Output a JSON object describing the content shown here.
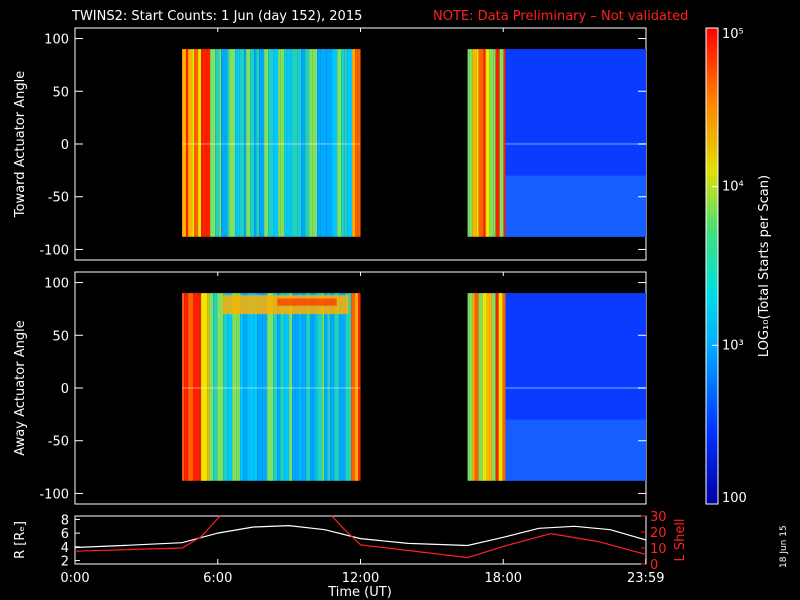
{
  "title": "TWINS2: Start Counts:  1 Jun (day 152), 2015",
  "note": "NOTE: Data Preliminary – Not validated",
  "date_stamp": "18 Jun 15",
  "colors": {
    "background": "#000000",
    "axis": "#ffffff",
    "note": "#ff2020",
    "r_line": "#ffffff",
    "l_shell_line": "#ff2020"
  },
  "chart_data": [
    {
      "type": "heatmap",
      "ylabel": "Toward Actuator Angle",
      "ylim": [
        -110,
        110
      ],
      "y_ticks": [
        "100",
        "50",
        "0",
        "-50",
        "-100"
      ],
      "xlim_hours": [
        0,
        24
      ],
      "data_blocks_hours": [
        [
          4.5,
          12.0
        ],
        [
          16.5,
          24.0
        ]
      ],
      "angle_range": [
        -88,
        90
      ],
      "colormap": "rainbow, log scale"
    },
    {
      "type": "heatmap",
      "ylabel": "Away Actuator Angle",
      "ylim": [
        -110,
        110
      ],
      "y_ticks": [
        "100",
        "50",
        "0",
        "-50",
        "-100"
      ],
      "xlim_hours": [
        0,
        24
      ],
      "data_blocks_hours": [
        [
          4.5,
          12.0
        ],
        [
          16.5,
          24.0
        ]
      ],
      "angle_range": [
        -88,
        90
      ],
      "colormap": "rainbow, log scale"
    },
    {
      "type": "line",
      "x_ticks": [
        "0:00",
        "6:00",
        "12:00",
        "18:00",
        "23:59"
      ],
      "xlabel": "Time (UT)",
      "ylabel_left": "R [Rₑ]",
      "ylim_left": [
        1.5,
        8.5
      ],
      "y_ticks_left": [
        "8",
        "6",
        "4",
        "2"
      ],
      "ylabel_right": "L Shell",
      "ylim_right": [
        0,
        30
      ],
      "y_ticks_right": [
        "30",
        "20",
        "10",
        "0"
      ],
      "series": [
        {
          "name": "R",
          "x": [
            0,
            2,
            4.5,
            6,
            7.5,
            9,
            10.5,
            12,
            14,
            16.5,
            18,
            19.5,
            21,
            22.5,
            24
          ],
          "values": [
            3.9,
            4.2,
            4.6,
            6.0,
            6.9,
            7.1,
            6.5,
            5.2,
            4.5,
            4.2,
            5.4,
            6.7,
            7.0,
            6.5,
            5.0
          ]
        },
        {
          "name": "L Shell",
          "x": [
            0,
            4.5,
            5.3,
            6.1,
            6.1,
            10.8,
            10.8,
            11.3,
            12,
            16.5,
            18,
            20,
            22,
            24
          ],
          "values": [
            8,
            10,
            17,
            30,
            null,
            null,
            30,
            22,
            12,
            4,
            11,
            19,
            14,
            6
          ]
        }
      ]
    },
    {
      "type": "heatmap",
      "colorbar": true,
      "label": "LOG₁₀(Total Starts per Scan)",
      "ticks": [
        "10⁵",
        "10⁴",
        "10³",
        "100"
      ],
      "range_log10": [
        2,
        5
      ]
    }
  ]
}
